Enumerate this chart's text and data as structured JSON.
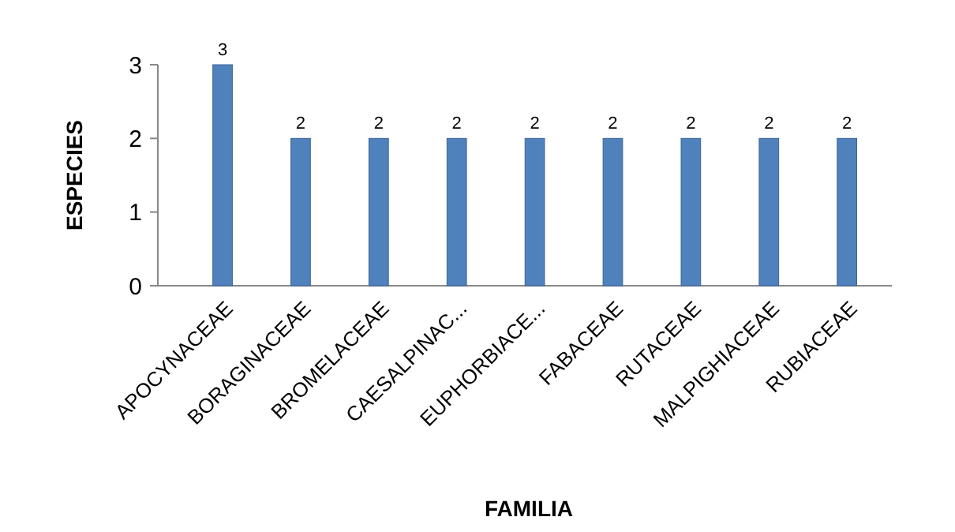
{
  "chart_data": {
    "type": "bar",
    "xlabel": "FAMILIA",
    "ylabel": "ESPECIES",
    "categories": [
      "APOCYNACEAE",
      "BORAGINACEAE",
      "BROMELACEAE",
      "CAESALPINAC...",
      "EUPHORBIACE...",
      "FABACEAE",
      "RUTACEAE",
      "MALPIGHIACEAE",
      "RUBIACEAE"
    ],
    "values": [
      3,
      2,
      2,
      2,
      2,
      2,
      2,
      2,
      2
    ],
    "color": "#4f81bd",
    "ylim": [
      0,
      3
    ],
    "yticks": [
      0,
      1,
      2,
      3
    ],
    "data_labels": true
  }
}
